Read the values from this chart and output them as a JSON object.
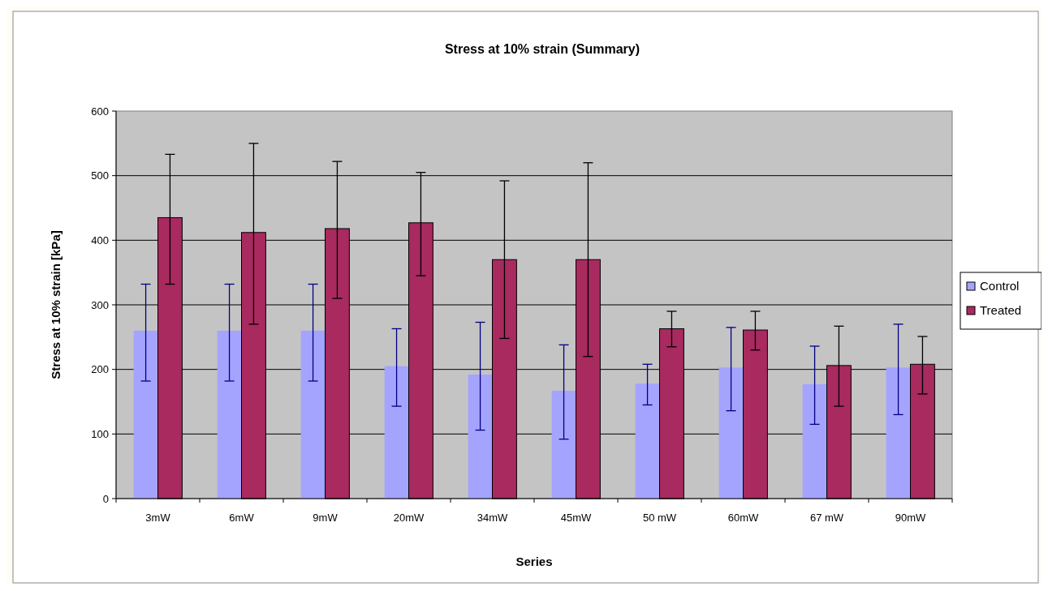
{
  "chart_data": {
    "type": "bar",
    "title": "Stress at 10% strain (Summary)",
    "xlabel": "Series",
    "ylabel": "Stress at 10% strain [kPa]",
    "categories": [
      "3mW",
      "6mW",
      "9mW",
      "20mW",
      "34mW",
      "45mW",
      "50 mW",
      "60mW",
      "67 mW",
      "90mW"
    ],
    "series": [
      {
        "name": "Control",
        "color": "#a4a4ff",
        "values": [
          260,
          260,
          260,
          205,
          192,
          167,
          178,
          203,
          177,
          203
        ],
        "errors": [
          [
            182,
            332
          ],
          [
            182,
            332
          ],
          [
            182,
            332
          ],
          [
            143,
            263
          ],
          [
            106,
            273
          ],
          [
            92,
            238
          ],
          [
            145,
            208
          ],
          [
            136,
            265
          ],
          [
            115,
            236
          ],
          [
            130,
            270
          ]
        ]
      },
      {
        "name": "Treated",
        "color": "#a82a5e",
        "values": [
          435,
          412,
          418,
          427,
          370,
          370,
          263,
          261,
          206,
          208
        ],
        "errors": [
          [
            332,
            533
          ],
          [
            270,
            550
          ],
          [
            310,
            522
          ],
          [
            345,
            505
          ],
          [
            248,
            492
          ],
          [
            220,
            520
          ],
          [
            235,
            290
          ],
          [
            230,
            290
          ],
          [
            143,
            267
          ],
          [
            162,
            251
          ]
        ]
      }
    ],
    "ylim": [
      0,
      600
    ],
    "yticks": [
      0,
      100,
      200,
      300,
      400,
      500,
      600
    ],
    "grid": "y",
    "legend": "right"
  }
}
